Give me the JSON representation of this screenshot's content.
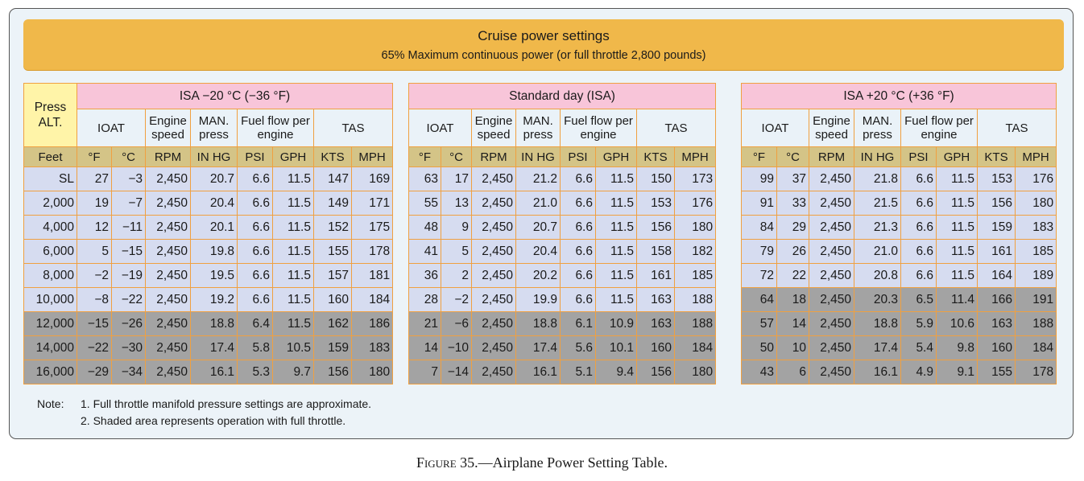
{
  "banner": {
    "title": "Cruise power settings",
    "subtitle": "65% Maximum continuous power (or full throttle 2,800 pounds)"
  },
  "press_alt_header": "Press ALT.",
  "sub_headers": {
    "ioat": "IOAT",
    "engine_speed": "Engine speed",
    "man_press": "MAN. press",
    "fuel_flow": "Fuel flow per engine",
    "tas": "TAS"
  },
  "units": {
    "feet": "Feet",
    "f": "°F",
    "c": "°C",
    "rpm": "RPM",
    "inhg": "IN HG",
    "psi": "PSI",
    "gph": "GPH",
    "kts": "KTS",
    "mph": "MPH"
  },
  "altitudes": [
    "SL",
    "2,000",
    "4,000",
    "6,000",
    "8,000",
    "10,000",
    "12,000",
    "14,000",
    "16,000"
  ],
  "panels": [
    {
      "title": "ISA −20 °C (−36 °F)",
      "shaded_from_row": 6,
      "rows": [
        [
          "27",
          "−3",
          "2,450",
          "20.7",
          "6.6",
          "11.5",
          "147",
          "169"
        ],
        [
          "19",
          "−7",
          "2,450",
          "20.4",
          "6.6",
          "11.5",
          "149",
          "171"
        ],
        [
          "12",
          "−11",
          "2,450",
          "20.1",
          "6.6",
          "11.5",
          "152",
          "175"
        ],
        [
          "5",
          "−15",
          "2,450",
          "19.8",
          "6.6",
          "11.5",
          "155",
          "178"
        ],
        [
          "−2",
          "−19",
          "2,450",
          "19.5",
          "6.6",
          "11.5",
          "157",
          "181"
        ],
        [
          "−8",
          "−22",
          "2,450",
          "19.2",
          "6.6",
          "11.5",
          "160",
          "184"
        ],
        [
          "−15",
          "−26",
          "2,450",
          "18.8",
          "6.4",
          "11.5",
          "162",
          "186"
        ],
        [
          "−22",
          "−30",
          "2,450",
          "17.4",
          "5.8",
          "10.5",
          "159",
          "183"
        ],
        [
          "−29",
          "−34",
          "2,450",
          "16.1",
          "5.3",
          "9.7",
          "156",
          "180"
        ]
      ]
    },
    {
      "title": "Standard day (ISA)",
      "shaded_from_row": 6,
      "rows": [
        [
          "63",
          "17",
          "2,450",
          "21.2",
          "6.6",
          "11.5",
          "150",
          "173"
        ],
        [
          "55",
          "13",
          "2,450",
          "21.0",
          "6.6",
          "11.5",
          "153",
          "176"
        ],
        [
          "48",
          "9",
          "2,450",
          "20.7",
          "6.6",
          "11.5",
          "156",
          "180"
        ],
        [
          "41",
          "5",
          "2,450",
          "20.4",
          "6.6",
          "11.5",
          "158",
          "182"
        ],
        [
          "36",
          "2",
          "2,450",
          "20.2",
          "6.6",
          "11.5",
          "161",
          "185"
        ],
        [
          "28",
          "−2",
          "2,450",
          "19.9",
          "6.6",
          "11.5",
          "163",
          "188"
        ],
        [
          "21",
          "−6",
          "2,450",
          "18.8",
          "6.1",
          "10.9",
          "163",
          "188"
        ],
        [
          "14",
          "−10",
          "2,450",
          "17.4",
          "5.6",
          "10.1",
          "160",
          "184"
        ],
        [
          "7",
          "−14",
          "2,450",
          "16.1",
          "5.1",
          "9.4",
          "156",
          "180"
        ]
      ]
    },
    {
      "title": "ISA +20 °C (+36 °F)",
      "shaded_from_row": 5,
      "rows": [
        [
          "99",
          "37",
          "2,450",
          "21.8",
          "6.6",
          "11.5",
          "153",
          "176"
        ],
        [
          "91",
          "33",
          "2,450",
          "21.5",
          "6.6",
          "11.5",
          "156",
          "180"
        ],
        [
          "84",
          "29",
          "2,450",
          "21.3",
          "6.6",
          "11.5",
          "159",
          "183"
        ],
        [
          "79",
          "26",
          "2,450",
          "21.0",
          "6.6",
          "11.5",
          "161",
          "185"
        ],
        [
          "72",
          "22",
          "2,450",
          "20.8",
          "6.6",
          "11.5",
          "164",
          "189"
        ],
        [
          "64",
          "18",
          "2,450",
          "20.3",
          "6.5",
          "11.4",
          "166",
          "191"
        ],
        [
          "57",
          "14",
          "2,450",
          "18.8",
          "5.9",
          "10.6",
          "163",
          "188"
        ],
        [
          "50",
          "10",
          "2,450",
          "17.4",
          "5.4",
          "9.8",
          "160",
          "184"
        ],
        [
          "43",
          "6",
          "2,450",
          "16.1",
          "4.9",
          "9.1",
          "155",
          "178"
        ]
      ]
    }
  ],
  "note": {
    "label": "Note:",
    "line1": "1. Full throttle manifold pressure settings are approximate.",
    "line2": "2. Shaded area represents operation with full throttle."
  },
  "caption": {
    "prefix": "Figure",
    "text": " 35.—Airplane Power Setting Table."
  },
  "colors": {
    "banner": "#f0b84a",
    "pink_header": "#f8c5d9",
    "unit_row": "#d4c487",
    "press_alt": "#fff4a8",
    "light_row": "#d6dcf0",
    "shaded_row": "#a3a3a3",
    "border": "#f0a040"
  }
}
